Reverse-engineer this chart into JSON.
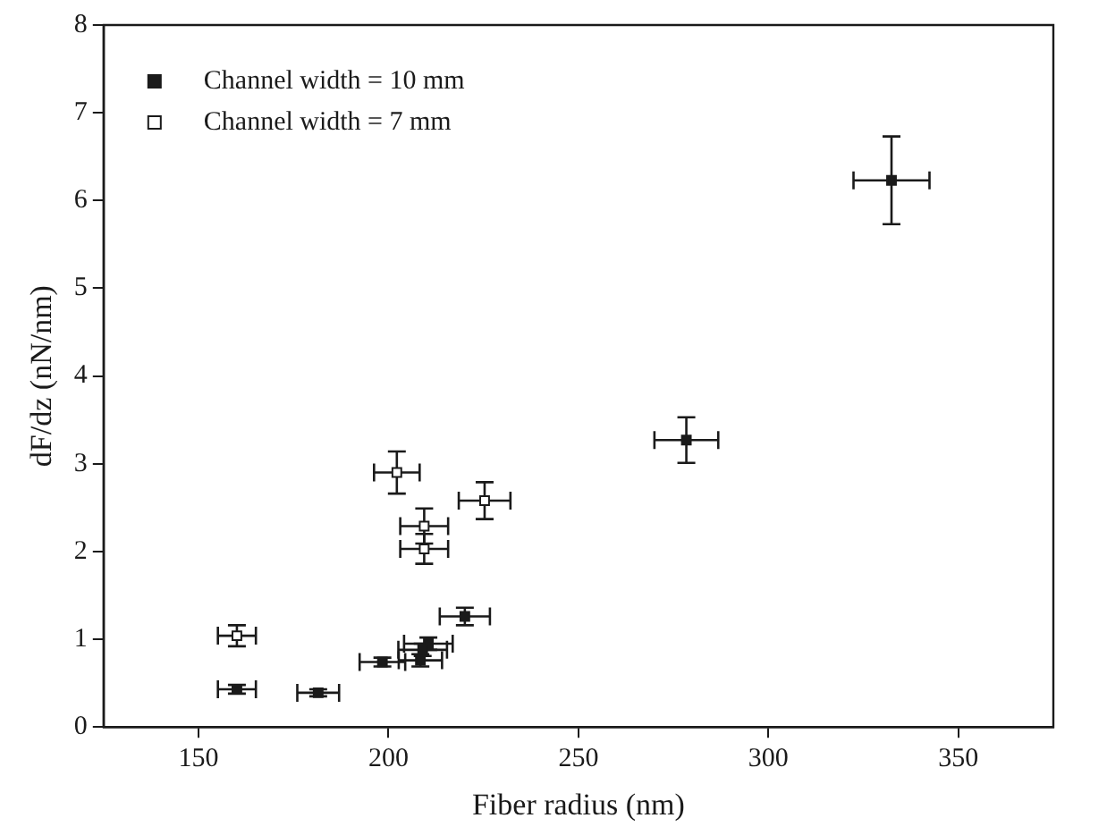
{
  "chart_data": {
    "type": "scatter",
    "xlabel": "Fiber radius (nm)",
    "ylabel": "dF/dz (nN/nm)",
    "xlim": [
      125,
      375
    ],
    "xticks": [
      150,
      200,
      250,
      300,
      350
    ],
    "ylim": [
      0,
      8
    ],
    "yticks": [
      0,
      1,
      2,
      3,
      4,
      5,
      6,
      7,
      8
    ],
    "grid": false,
    "legend": "top left",
    "marker": "square",
    "series": [
      {
        "name": "Channel width = 10 mm",
        "color": "#1a1a1a",
        "x": [
          332.4,
          278.4,
          220.1,
          210.5,
          209,
          208.4,
          198.4,
          181.5,
          160.1
        ],
        "values": [
          6.23,
          3.27,
          1.26,
          0.95,
          0.88,
          0.76,
          0.74,
          0.39,
          0.43
        ],
        "errors": [
          0.5,
          0.26,
          0.1,
          0.07,
          0.07,
          0.07,
          0.05,
          0.04,
          0.05
        ],
        "xerrors": [
          10,
          8.4,
          6.6,
          6.4,
          6.4,
          5.7,
          6,
          5.5,
          5
        ]
      },
      {
        "name": "Channel width = 7 mm",
        "color": "#ffffff",
        "x": [
          160.1,
          202.2,
          225.3,
          209.4,
          209.4
        ],
        "values": [
          1.04,
          2.9,
          2.58,
          2.29,
          2.03
        ],
        "errors": [
          0.12,
          0.24,
          0.21,
          0.2,
          0.17
        ],
        "xerrors": [
          5,
          6,
          6.8,
          6.3,
          6.3
        ]
      }
    ]
  }
}
